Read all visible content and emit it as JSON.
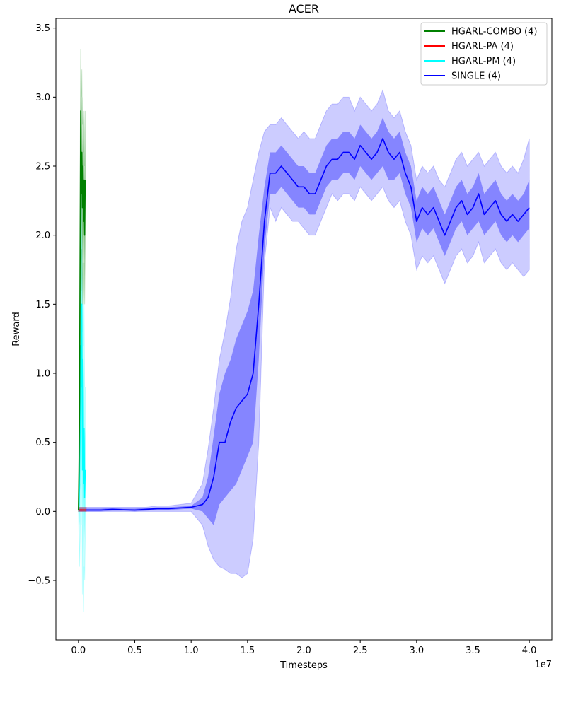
{
  "chart_data": {
    "type": "line",
    "title": "ACER",
    "xlabel": "Timesteps",
    "ylabel": "Reward",
    "x_offset_label": "1e7",
    "xlim": [
      -2000000,
      42000000
    ],
    "ylim": [
      -0.93,
      3.57
    ],
    "x_ticks": [
      0,
      5000000,
      10000000,
      15000000,
      20000000,
      25000000,
      30000000,
      35000000,
      40000000
    ],
    "x_tick_labels": [
      "0.0",
      "0.5",
      "1.0",
      "1.5",
      "2.0",
      "2.5",
      "3.0",
      "3.5",
      "4.0"
    ],
    "y_ticks": [
      -0.5,
      0.0,
      0.5,
      1.0,
      1.5,
      2.0,
      2.5,
      3.0,
      3.5
    ],
    "y_tick_labels": [
      "−0.5",
      "0.0",
      "0.5",
      "1.0",
      "1.5",
      "2.0",
      "2.5",
      "3.0",
      "3.5"
    ],
    "legend_position": "top-right",
    "series": [
      {
        "name": "HGARL-COMBO (4)",
        "color": "#008000",
        "x": [
          0,
          50000,
          100000,
          150000,
          200000,
          250000,
          300000,
          350000,
          400000,
          450000,
          500000,
          550000,
          600000
        ],
        "y": [
          0.01,
          0.3,
          0.8,
          1.9,
          2.9,
          2.3,
          2.6,
          2.2,
          2.5,
          2.1,
          2.4,
          2.0,
          2.4
        ],
        "band_sd_lower": [
          0.0,
          0.1,
          0.5,
          1.6,
          2.6,
          1.9,
          2.2,
          1.8,
          2.1,
          1.8,
          2.1,
          1.7,
          2.1
        ],
        "band_sd_upper": [
          0.02,
          0.5,
          1.2,
          2.3,
          3.1,
          2.7,
          3.0,
          2.5,
          2.8,
          2.4,
          2.7,
          2.3,
          2.7
        ],
        "band_range_lower": [
          0.0,
          0.0,
          0.3,
          1.3,
          2.3,
          1.6,
          1.9,
          1.5,
          1.8,
          1.5,
          1.8,
          1.5,
          1.9
        ],
        "band_range_upper": [
          0.03,
          0.7,
          1.5,
          2.6,
          3.35,
          3.0,
          3.2,
          2.8,
          3.0,
          2.6,
          2.9,
          2.5,
          2.9
        ]
      },
      {
        "name": "HGARL-PA (4)",
        "color": "#ff0000",
        "x": [
          0,
          100000,
          200000,
          300000,
          400000,
          500000,
          600000,
          700000
        ],
        "y": [
          0.01,
          0.01,
          0.01,
          0.01,
          0.01,
          0.01,
          0.01,
          0.01
        ],
        "band_sd_lower": [
          0.0,
          0.0,
          0.0,
          0.0,
          0.0,
          0.0,
          0.0,
          0.0
        ],
        "band_sd_upper": [
          0.02,
          0.02,
          0.02,
          0.02,
          0.02,
          0.02,
          0.02,
          0.02
        ],
        "band_range_lower": [
          0.0,
          0.0,
          0.0,
          0.0,
          0.0,
          0.0,
          0.0,
          0.0
        ],
        "band_range_upper": [
          0.03,
          0.03,
          0.03,
          0.03,
          0.03,
          0.03,
          0.03,
          0.03
        ]
      },
      {
        "name": "HGARL-PM (4)",
        "color": "#00ffff",
        "x": [
          0,
          50000,
          100000,
          150000,
          200000,
          250000,
          300000,
          350000,
          400000,
          450000,
          500000,
          550000,
          600000
        ],
        "y": [
          0.01,
          0.05,
          0.2,
          0.6,
          1.2,
          0.9,
          1.5,
          0.3,
          1.1,
          0.2,
          0.6,
          0.1,
          0.3
        ],
        "band_sd_lower": [
          0.0,
          -0.05,
          -0.1,
          0.2,
          0.7,
          0.4,
          0.9,
          -0.2,
          0.5,
          -0.3,
          0.1,
          -0.2,
          0.0
        ],
        "band_sd_upper": [
          0.02,
          0.15,
          0.5,
          1.0,
          1.7,
          1.4,
          2.0,
          0.8,
          1.6,
          0.7,
          1.1,
          0.5,
          0.6
        ],
        "band_range_lower": [
          0.0,
          -0.2,
          -0.4,
          -0.2,
          0.2,
          -0.1,
          0.3,
          -0.6,
          -0.1,
          -0.73,
          -0.4,
          -0.5,
          -0.2
        ],
        "band_range_upper": [
          0.03,
          0.3,
          0.8,
          1.4,
          2.1,
          1.8,
          2.3,
          1.3,
          2.0,
          1.2,
          1.5,
          0.9,
          0.9
        ]
      },
      {
        "name": "SINGLE (4)",
        "color": "#0000ff",
        "x": [
          0,
          1000000,
          2000000,
          3000000,
          4000000,
          5000000,
          6000000,
          7000000,
          8000000,
          9000000,
          10000000,
          11000000,
          11500000,
          12000000,
          12500000,
          13000000,
          13500000,
          14000000,
          14500000,
          15000000,
          15500000,
          16000000,
          16500000,
          17000000,
          17500000,
          18000000,
          18500000,
          19000000,
          19500000,
          20000000,
          20500000,
          21000000,
          21500000,
          22000000,
          22500000,
          23000000,
          23500000,
          24000000,
          24500000,
          25000000,
          25500000,
          26000000,
          26500000,
          27000000,
          27500000,
          28000000,
          28500000,
          29000000,
          29500000,
          30000000,
          30500000,
          31000000,
          31500000,
          32000000,
          32500000,
          33000000,
          33500000,
          34000000,
          34500000,
          35000000,
          35500000,
          36000000,
          36500000,
          37000000,
          37500000,
          38000000,
          38500000,
          39000000,
          39500000,
          40000000
        ],
        "y": [
          0.01,
          0.01,
          0.01,
          0.015,
          0.012,
          0.01,
          0.015,
          0.02,
          0.02,
          0.025,
          0.03,
          0.05,
          0.1,
          0.25,
          0.5,
          0.5,
          0.65,
          0.75,
          0.8,
          0.85,
          1.0,
          1.5,
          2.1,
          2.45,
          2.45,
          2.5,
          2.45,
          2.4,
          2.35,
          2.35,
          2.3,
          2.3,
          2.4,
          2.5,
          2.55,
          2.55,
          2.6,
          2.6,
          2.55,
          2.65,
          2.6,
          2.55,
          2.6,
          2.7,
          2.6,
          2.55,
          2.6,
          2.45,
          2.35,
          2.1,
          2.2,
          2.15,
          2.2,
          2.1,
          2.0,
          2.1,
          2.2,
          2.25,
          2.15,
          2.2,
          2.3,
          2.15,
          2.2,
          2.25,
          2.15,
          2.1,
          2.15,
          2.1,
          2.15,
          2.2
        ],
        "band_sd_lower": [
          0.0,
          0.0,
          0.0,
          0.005,
          0.005,
          0.0,
          0.005,
          0.01,
          0.01,
          0.015,
          0.02,
          0.0,
          -0.05,
          -0.1,
          0.05,
          0.1,
          0.15,
          0.2,
          0.3,
          0.4,
          0.5,
          1.1,
          1.9,
          2.3,
          2.3,
          2.35,
          2.3,
          2.25,
          2.2,
          2.2,
          2.15,
          2.15,
          2.25,
          2.35,
          2.4,
          2.4,
          2.45,
          2.45,
          2.4,
          2.5,
          2.45,
          2.4,
          2.45,
          2.5,
          2.4,
          2.4,
          2.45,
          2.3,
          2.2,
          1.95,
          2.05,
          2.0,
          2.05,
          1.95,
          1.85,
          1.95,
          2.05,
          2.1,
          2.0,
          2.05,
          2.1,
          2.0,
          2.05,
          2.1,
          2.0,
          1.95,
          2.0,
          1.95,
          2.0,
          2.05
        ],
        "band_sd_upper": [
          0.02,
          0.02,
          0.02,
          0.025,
          0.02,
          0.02,
          0.025,
          0.03,
          0.03,
          0.035,
          0.04,
          0.1,
          0.25,
          0.55,
          0.85,
          1.0,
          1.1,
          1.25,
          1.35,
          1.45,
          1.6,
          2.0,
          2.35,
          2.6,
          2.6,
          2.65,
          2.6,
          2.55,
          2.5,
          2.5,
          2.45,
          2.45,
          2.55,
          2.65,
          2.7,
          2.7,
          2.75,
          2.75,
          2.7,
          2.8,
          2.75,
          2.7,
          2.75,
          2.85,
          2.75,
          2.7,
          2.75,
          2.6,
          2.5,
          2.25,
          2.35,
          2.3,
          2.35,
          2.25,
          2.15,
          2.25,
          2.35,
          2.4,
          2.3,
          2.35,
          2.45,
          2.3,
          2.35,
          2.4,
          2.3,
          2.25,
          2.3,
          2.25,
          2.3,
          2.4
        ],
        "band_range_lower": [
          0.0,
          0.0,
          0.0,
          0.0,
          0.0,
          0.0,
          0.0,
          0.0,
          0.0,
          0.0,
          0.0,
          -0.1,
          -0.25,
          -0.35,
          -0.4,
          -0.42,
          -0.45,
          -0.45,
          -0.48,
          -0.45,
          -0.2,
          0.5,
          1.8,
          2.2,
          2.1,
          2.2,
          2.15,
          2.1,
          2.1,
          2.05,
          2.0,
          2.0,
          2.1,
          2.2,
          2.3,
          2.25,
          2.3,
          2.3,
          2.25,
          2.35,
          2.3,
          2.25,
          2.3,
          2.35,
          2.25,
          2.2,
          2.25,
          2.1,
          2.0,
          1.75,
          1.85,
          1.8,
          1.85,
          1.75,
          1.65,
          1.75,
          1.85,
          1.9,
          1.8,
          1.85,
          1.95,
          1.8,
          1.85,
          1.9,
          1.8,
          1.75,
          1.8,
          1.75,
          1.7,
          1.75
        ],
        "band_range_upper": [
          0.03,
          0.03,
          0.03,
          0.03,
          0.03,
          0.03,
          0.03,
          0.04,
          0.04,
          0.05,
          0.06,
          0.2,
          0.45,
          0.75,
          1.1,
          1.3,
          1.55,
          1.9,
          2.1,
          2.2,
          2.4,
          2.6,
          2.75,
          2.8,
          2.8,
          2.85,
          2.8,
          2.75,
          2.7,
          2.75,
          2.7,
          2.7,
          2.8,
          2.9,
          2.95,
          2.95,
          3.0,
          3.0,
          2.9,
          3.0,
          2.95,
          2.9,
          2.95,
          3.05,
          2.9,
          2.85,
          2.9,
          2.75,
          2.65,
          2.4,
          2.5,
          2.45,
          2.5,
          2.4,
          2.35,
          2.45,
          2.55,
          2.6,
          2.5,
          2.55,
          2.6,
          2.5,
          2.55,
          2.6,
          2.5,
          2.45,
          2.5,
          2.45,
          2.55,
          2.7
        ]
      }
    ]
  }
}
